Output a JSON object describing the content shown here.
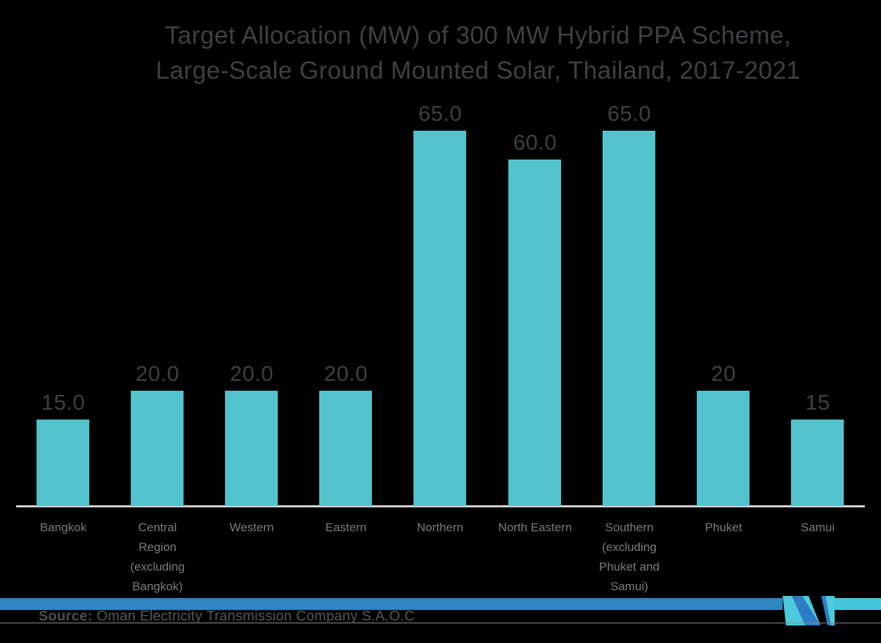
{
  "title": {
    "line1": "Target Allocation (MW) of 300 MW Hybrid PPA Scheme,",
    "line2": "Large-Scale Ground Mounted Solar, Thailand, 2017-2021"
  },
  "source": {
    "label": "Source:",
    "text": " Oman Electricity Transmission Company S.A.O.C"
  },
  "chart_data": {
    "type": "bar",
    "title": "Target Allocation (MW) of 300 MW Hybrid PPA Scheme, Large-Scale Ground Mounted Solar, Thailand, 2017-2021",
    "categories": [
      "Bangkok",
      "Central Region (excluding Bangkok)",
      "Western",
      "Eastern",
      "Northern",
      "North Eastern",
      "Southern (excluding Phuket and Samui)",
      "Phuket",
      "Samui"
    ],
    "tick_labels": [
      "Bangkok",
      "Central\nRegion\n(excluding\nBangkok)",
      "Western",
      "Eastern",
      "Northern",
      "North Eastern",
      "Southern\n(excluding\nPhuket and\nSamui)",
      "Phuket",
      "Samui"
    ],
    "values": [
      15,
      20,
      20,
      20,
      65,
      60,
      65,
      20,
      15
    ],
    "value_labels": [
      "15.0",
      "20.0",
      "20.0",
      "20.0",
      "65.0",
      "60.0",
      "65.0",
      "20",
      "15"
    ],
    "xlabel": "",
    "ylabel": "",
    "ylim": [
      0,
      70
    ],
    "grid": false,
    "legend": "none",
    "bar_color": "#52c3cd"
  },
  "colors": {
    "background": "#000000",
    "bar": "#52c3cd",
    "title_text": "#3f4043",
    "value_label_text": "#3e3f41",
    "tick_label_text": "#7a7b7d",
    "axis_line": "#d6d4d2",
    "banner_blue": "#2e86c0",
    "banner_teal": "#45c6d8",
    "logo_teal": "#4ccbdc",
    "logo_blue": "#2e7cc3",
    "footer_rule": "#8e8e90"
  }
}
